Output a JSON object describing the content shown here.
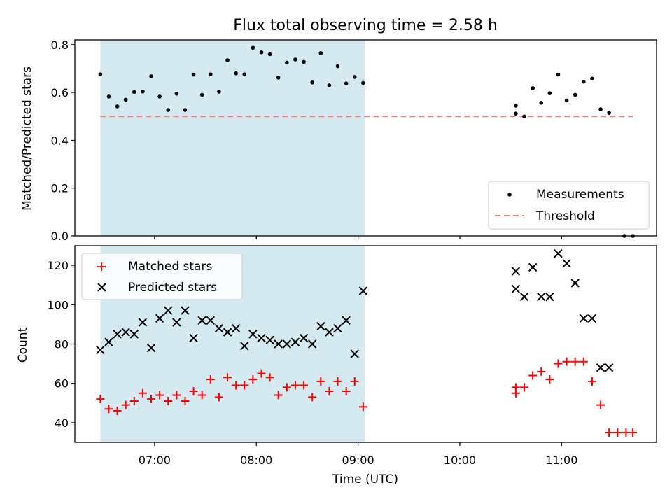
{
  "chart_data": [
    {
      "type": "scatter",
      "title": "Flux total observing time = 2.58 h",
      "ylabel": "Matched/Predicted stars",
      "xlabel": "",
      "ylim": [
        0,
        0.82
      ],
      "yticks": [
        0.0,
        0.2,
        0.4,
        0.6,
        0.8
      ],
      "ytick_labels": [
        "0.0",
        "0.2",
        "0.4",
        "0.6",
        "0.8"
      ],
      "xlim": [
        "06:13",
        "11:56"
      ],
      "shaded_interval": [
        "06:28",
        "09:04"
      ],
      "shade_color": "#d5eaf0",
      "threshold": {
        "value": 0.5,
        "x": [
          "06:28",
          "11:42"
        ],
        "color": "#f08080"
      },
      "legend_position": "lower right",
      "legend": [
        "Measurements",
        "Threshold"
      ],
      "series": [
        {
          "name": "Measurements",
          "color": "#000000",
          "x": [
            "06:28",
            "06:33",
            "06:38",
            "06:43",
            "06:48",
            "06:53",
            "06:58",
            "07:03",
            "07:08",
            "07:13",
            "07:18",
            "07:23",
            "07:28",
            "07:33",
            "07:38",
            "07:43",
            "07:48",
            "07:53",
            "07:58",
            "08:03",
            "08:08",
            "08:13",
            "08:18",
            "08:23",
            "08:28",
            "08:33",
            "08:38",
            "08:43",
            "08:48",
            "08:53",
            "08:58",
            "09:03",
            "10:33",
            "10:33",
            "10:38",
            "10:43",
            "10:48",
            "10:53",
            "10:58",
            "11:03",
            "11:08",
            "11:13",
            "11:18",
            "11:23",
            "11:28",
            "11:37",
            "11:42"
          ],
          "y": [
            0.676,
            0.583,
            0.542,
            0.57,
            0.602,
            0.604,
            0.668,
            0.583,
            0.527,
            0.595,
            0.527,
            0.675,
            0.59,
            0.676,
            0.603,
            0.735,
            0.68,
            0.676,
            0.787,
            0.768,
            0.76,
            0.662,
            0.725,
            0.738,
            0.728,
            0.642,
            0.765,
            0.63,
            0.71,
            0.638,
            0.665,
            0.64,
            0.545,
            0.512,
            0.5,
            0.618,
            0.557,
            0.597,
            0.675,
            0.567,
            0.59,
            0.645,
            0.658,
            0.53,
            0.515,
            0.0,
            0.0
          ]
        }
      ]
    },
    {
      "type": "scatter",
      "xlabel": "Time (UTC)",
      "ylabel": "Count",
      "ylim": [
        30,
        130
      ],
      "yticks": [
        40,
        60,
        80,
        100,
        120
      ],
      "ytick_labels": [
        "40",
        "60",
        "80",
        "100",
        "120"
      ],
      "xlim": [
        "06:13",
        "11:56"
      ],
      "xticks": [
        "07:00",
        "08:00",
        "09:00",
        "10:00",
        "11:00"
      ],
      "xtick_labels": [
        "07:00",
        "08:00",
        "09:00",
        "10:00",
        "11:00"
      ],
      "shaded_interval": [
        "06:28",
        "09:04"
      ],
      "legend_position": "upper left",
      "legend": [
        "Matched stars",
        "Predicted stars"
      ],
      "series": [
        {
          "name": "Matched stars",
          "marker": "+",
          "color": "#ff0000",
          "x": [
            "06:28",
            "06:33",
            "06:38",
            "06:43",
            "06:48",
            "06:53",
            "06:58",
            "07:03",
            "07:08",
            "07:13",
            "07:18",
            "07:23",
            "07:28",
            "07:33",
            "07:38",
            "07:43",
            "07:48",
            "07:53",
            "07:58",
            "08:03",
            "08:08",
            "08:13",
            "08:18",
            "08:23",
            "08:28",
            "08:33",
            "08:38",
            "08:43",
            "08:48",
            "08:53",
            "08:58",
            "09:03",
            "10:33",
            "10:33",
            "10:38",
            "10:43",
            "10:48",
            "10:53",
            "10:58",
            "11:03",
            "11:08",
            "11:13",
            "11:18",
            "11:23",
            "11:28",
            "11:33",
            "11:38",
            "11:42"
          ],
          "y": [
            52,
            47,
            46,
            49,
            51,
            55,
            52,
            54,
            51,
            54,
            51,
            56,
            54,
            62,
            53,
            63,
            59,
            59,
            62,
            65,
            63,
            54,
            58,
            59,
            59,
            53,
            61,
            56,
            61,
            56,
            61,
            48,
            55,
            58,
            58,
            64,
            66,
            62,
            70,
            71,
            71,
            71,
            61,
            49,
            35,
            35,
            35,
            35
          ]
        },
        {
          "name": "Predicted stars",
          "marker": "x",
          "color": "#000000",
          "x": [
            "06:28",
            "06:33",
            "06:38",
            "06:43",
            "06:48",
            "06:53",
            "06:58",
            "07:03",
            "07:08",
            "07:13",
            "07:18",
            "07:23",
            "07:28",
            "07:33",
            "07:38",
            "07:43",
            "07:48",
            "07:53",
            "07:58",
            "08:03",
            "08:08",
            "08:13",
            "08:18",
            "08:23",
            "08:28",
            "08:33",
            "08:38",
            "08:43",
            "08:48",
            "08:53",
            "08:58",
            "09:03",
            "10:33",
            "10:33",
            "10:38",
            "10:43",
            "10:48",
            "10:53",
            "10:58",
            "11:03",
            "11:08",
            "11:13",
            "11:18",
            "11:23",
            "11:28"
          ],
          "y": [
            77,
            81,
            85,
            86,
            85,
            91,
            78,
            93,
            97,
            91,
            97,
            83,
            92,
            92,
            88,
            86,
            88,
            79,
            85,
            83,
            82,
            80,
            80,
            81,
            83,
            80,
            89,
            86,
            88,
            92,
            75,
            107,
            108,
            117,
            104,
            119,
            104,
            104,
            126,
            121,
            111,
            93,
            93,
            68,
            68
          ]
        }
      ]
    }
  ]
}
